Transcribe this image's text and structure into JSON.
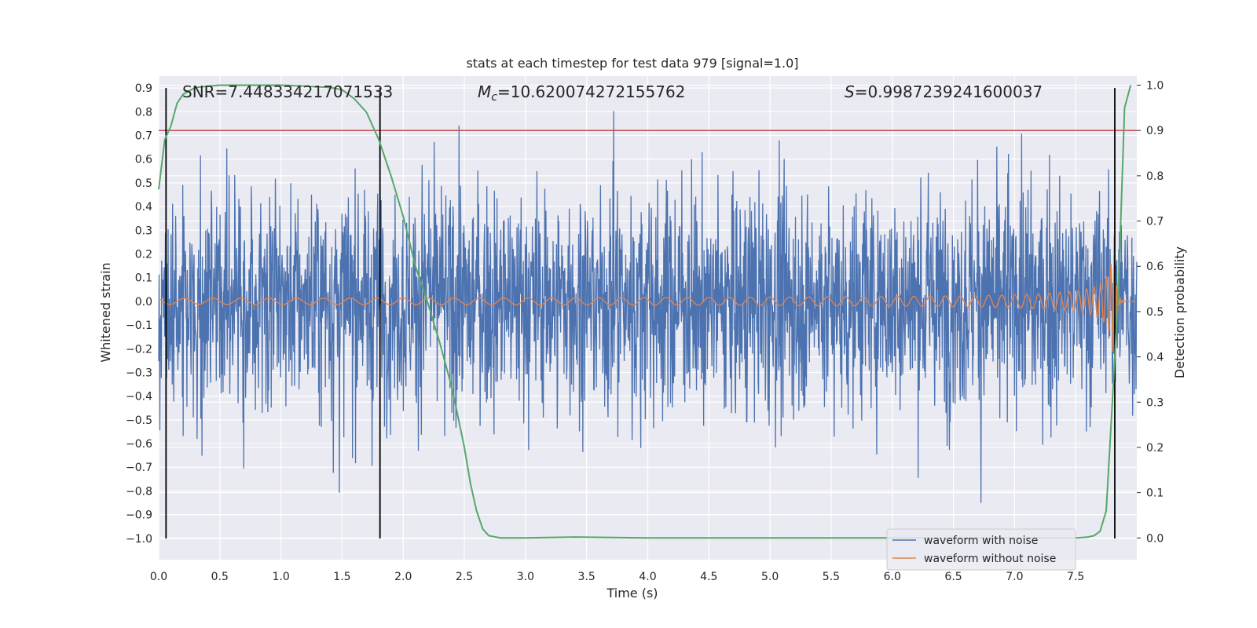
{
  "chart_data": {
    "type": "line",
    "title": "stats at each timestep for test data 979 [signal=1.0]",
    "xlabel": "Time (s)",
    "ylabel": "Whitened strain",
    "y2label": "Detection probability",
    "xlim": [
      0.0,
      8.0
    ],
    "ylim": [
      -1.09,
      0.95
    ],
    "y2lim": [
      -0.048,
      1.02
    ],
    "x_ticks": [
      "0.0",
      "0.5",
      "1.0",
      "1.5",
      "2.0",
      "2.5",
      "3.0",
      "3.5",
      "4.0",
      "4.5",
      "5.0",
      "5.5",
      "6.0",
      "6.5",
      "7.0",
      "7.5"
    ],
    "y_ticks": [
      "0.9",
      "0.8",
      "0.7",
      "0.6",
      "0.5",
      "0.4",
      "0.3",
      "0.2",
      "0.1",
      "0.0",
      "−0.1",
      "−0.2",
      "−0.3",
      "−0.4",
      "−0.5",
      "−0.6",
      "−0.7",
      "−0.8",
      "−0.9",
      "−1.0"
    ],
    "y2_ticks": [
      "1.0",
      "0.9",
      "0.8",
      "0.7",
      "0.6",
      "0.5",
      "0.4",
      "0.3",
      "0.2",
      "0.1",
      "0.0"
    ],
    "grid": true,
    "legend_placement": "lower-right",
    "annotations": {
      "snr": "SNR=7.448334217071533",
      "mc_symbol": "M",
      "mc_sub": "c",
      "mc_value": "=10.620074272155762",
      "s_symbol": "S",
      "s_value": "=0.9987239241600037"
    },
    "threshold": {
      "y2": 0.9,
      "color": "#c44e52"
    },
    "vertical_lines_x": [
      0.06,
      1.81,
      7.82
    ],
    "series": [
      {
        "name": "waveform with noise",
        "color": "#4c72b0",
        "axis": "left",
        "description_envelope": {
          "typical_amplitude": 0.35,
          "x_range": [
            0.0,
            8.0
          ]
        }
      },
      {
        "name": "waveform without noise",
        "color": "#dd8452",
        "axis": "left",
        "description_chirp": {
          "merger_time": 7.82,
          "start_amplitude": 0.012,
          "peak_amplitude": 0.3
        }
      },
      {
        "name": "detection probability",
        "color": "#55a868",
        "axis": "right",
        "x": [
          0.0,
          0.05,
          0.1,
          0.15,
          0.2,
          0.3,
          0.5,
          0.8,
          1.0,
          1.2,
          1.4,
          1.5,
          1.6,
          1.7,
          1.8,
          1.9,
          2.0,
          2.1,
          2.2,
          2.3,
          2.4,
          2.5,
          2.55,
          2.6,
          2.65,
          2.7,
          2.8,
          3.0,
          3.4,
          4.0,
          5.0,
          6.0,
          7.0,
          7.5,
          7.6,
          7.65,
          7.7,
          7.75,
          7.8,
          7.85,
          7.9,
          7.95
        ],
        "values": [
          0.77,
          0.88,
          0.91,
          0.96,
          0.98,
          0.995,
          1.0,
          1.0,
          1.0,
          0.998,
          0.995,
          0.99,
          0.97,
          0.94,
          0.88,
          0.8,
          0.71,
          0.6,
          0.52,
          0.43,
          0.33,
          0.2,
          0.12,
          0.06,
          0.02,
          0.005,
          0.0,
          0.0,
          0.002,
          0.0,
          0.0,
          0.0,
          0.0,
          0.0,
          0.002,
          0.005,
          0.015,
          0.06,
          0.3,
          0.55,
          0.95,
          1.0
        ]
      }
    ]
  }
}
